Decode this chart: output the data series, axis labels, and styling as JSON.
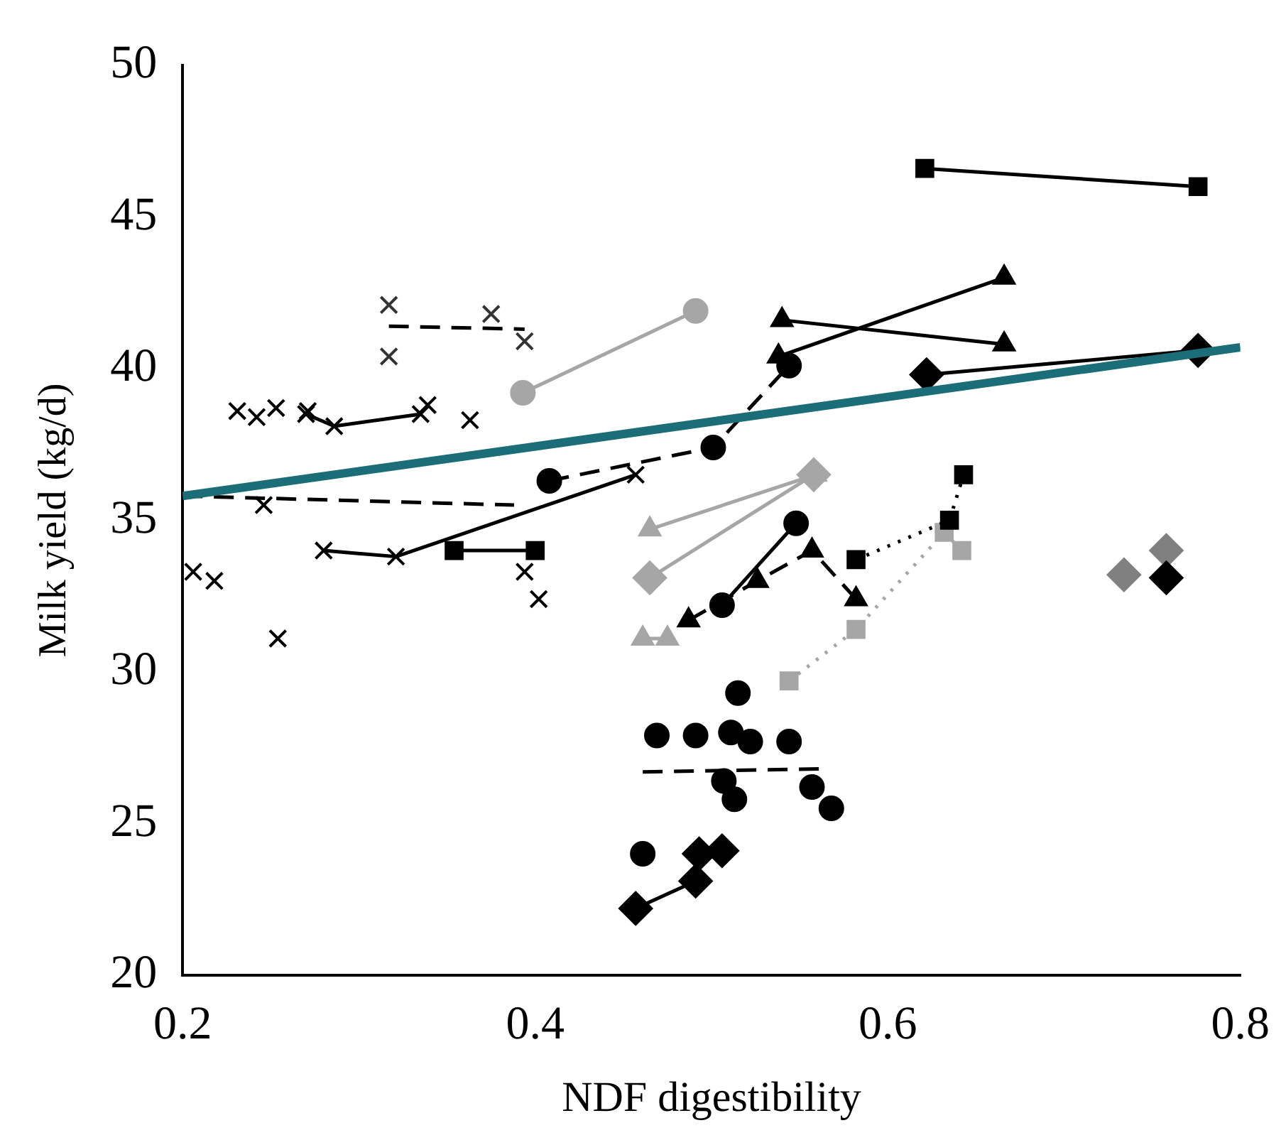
{
  "chart_data": {
    "type": "scatter",
    "xlabel": "NDF digestibility",
    "ylabel": "Milk yield (kg/d)",
    "xlim": [
      0.2,
      0.8
    ],
    "xticks": [
      0.2,
      0.4,
      0.6,
      0.8
    ],
    "ylim": [
      20,
      50
    ],
    "yticks": [
      20,
      25,
      30,
      35,
      40,
      45,
      50
    ],
    "grid": false,
    "legend": false,
    "series": [
      {
        "type": "scatter",
        "marker": "cross",
        "color": "#000000",
        "x": [
          0.231,
          0.242,
          0.253,
          0.271,
          0.339,
          0.363,
          0.246,
          0.206,
          0.218,
          0.254,
          0.394,
          0.402
        ],
        "values": [
          38.6,
          38.4,
          38.7,
          38.6,
          38.8,
          38.3,
          35.5,
          33.3,
          33.0,
          31.1,
          33.3,
          32.4
        ]
      },
      {
        "type": "line",
        "marker": "none",
        "line_style": "dashed",
        "color": "#000000",
        "x": [
          0.2,
          0.388
        ],
        "values": [
          35.8,
          35.5
        ]
      },
      {
        "type": "scatter",
        "marker": "cross",
        "color": "#333333",
        "x": [
          0.317,
          0.317,
          0.375,
          0.394
        ],
        "values": [
          42.1,
          40.4,
          41.8,
          40.9
        ]
      },
      {
        "type": "line",
        "marker": "none",
        "line_style": "dashed",
        "color": "#000000",
        "x": [
          0.317,
          0.394
        ],
        "values": [
          41.4,
          41.3
        ]
      },
      {
        "type": "line",
        "marker": "cross",
        "line_style": "solid",
        "color": "#000000",
        "x": [
          0.27,
          0.286,
          0.335
        ],
        "values": [
          38.5,
          38.1,
          38.5
        ]
      },
      {
        "type": "line",
        "marker": "cross",
        "line_style": "solid",
        "color": "#000000",
        "x": [
          0.28,
          0.321,
          0.457
        ],
        "values": [
          34.0,
          33.8,
          36.5
        ]
      },
      {
        "type": "line",
        "marker": "square",
        "line_style": "solid",
        "color": "#000000",
        "x": [
          0.354,
          0.4
        ],
        "values": [
          34.0,
          34.0
        ]
      },
      {
        "type": "line",
        "marker": "circle",
        "line_style": "solid",
        "color": "#a6a6a6",
        "x": [
          0.393,
          0.491
        ],
        "values": [
          39.2,
          41.9
        ]
      },
      {
        "type": "line",
        "marker": "circle",
        "line_style": "dashed",
        "color": "#000000",
        "x": [
          0.408,
          0.501,
          0.544
        ],
        "values": [
          36.3,
          37.4,
          40.1
        ]
      },
      {
        "type": "line",
        "marker": "circle",
        "line_style": "solid",
        "color": "#000000",
        "x": [
          0.506,
          0.548
        ],
        "values": [
          32.2,
          34.9
        ]
      },
      {
        "type": "line",
        "marker": "triangle",
        "line_style": "solid",
        "color": "#000000",
        "x": [
          0.54,
          0.666
        ],
        "values": [
          41.6,
          40.8
        ]
      },
      {
        "type": "line",
        "marker": "triangle",
        "line_style": "solid",
        "color": "#000000",
        "x": [
          0.538,
          0.666
        ],
        "values": [
          40.4,
          43.0
        ]
      },
      {
        "type": "line",
        "marker": "diamond",
        "line_style": "solid",
        "color": "#000000",
        "x": [
          0.622,
          0.776
        ],
        "values": [
          39.8,
          40.6
        ]
      },
      {
        "type": "line",
        "marker": "square",
        "line_style": "solid",
        "color": "#000000",
        "x": [
          0.621,
          0.776
        ],
        "values": [
          46.6,
          46.0
        ]
      },
      {
        "type": "line",
        "marker": "triangle",
        "line_style": "solid",
        "color": "#a6a6a6",
        "x": [
          0.465,
          0.559
        ],
        "values": [
          34.7,
          36.5
        ]
      },
      {
        "type": "line",
        "marker": "diamond",
        "line_style": "solid",
        "color": "#a6a6a6",
        "x": [
          0.465,
          0.558
        ],
        "values": [
          33.1,
          36.5
        ]
      },
      {
        "type": "line",
        "marker": "triangle",
        "line_style": "solid",
        "color": "#a6a6a6",
        "x": [
          0.461,
          0.475
        ],
        "values": [
          31.1,
          31.1
        ]
      },
      {
        "type": "line",
        "marker": "triangle",
        "line_style": "dashed",
        "color": "#000000",
        "x": [
          0.487,
          0.526,
          0.557,
          0.582
        ],
        "values": [
          31.7,
          33.0,
          34.0,
          32.4
        ]
      },
      {
        "type": "line",
        "marker": "square",
        "line_style": "dotted",
        "color": "#000000",
        "x": [
          0.582,
          0.635,
          0.643
        ],
        "values": [
          33.7,
          35.0,
          36.5
        ]
      },
      {
        "type": "line",
        "marker": "square",
        "line_style": "dotted",
        "color": "#a6a6a6",
        "x": [
          0.544,
          0.582,
          0.632,
          0.642
        ],
        "values": [
          29.7,
          31.4,
          34.6,
          34.0
        ]
      },
      {
        "type": "scatter",
        "marker": "circle",
        "color": "#000000",
        "x": [
          0.469,
          0.515,
          0.522,
          0.557,
          0.568,
          0.461
        ],
        "values": [
          27.9,
          29.3,
          27.7,
          26.2,
          25.5,
          24.0
        ]
      },
      {
        "type": "scatter",
        "marker": "circle",
        "color": "#000000",
        "x": [
          0.491,
          0.511,
          0.544,
          0.507,
          0.513
        ],
        "values": [
          27.9,
          28.0,
          27.7,
          26.4,
          25.8
        ]
      },
      {
        "type": "line",
        "marker": "none",
        "line_style": "dashed",
        "color": "#000000",
        "x": [
          0.461,
          0.564
        ],
        "values": [
          26.7,
          26.8
        ]
      },
      {
        "type": "line",
        "marker": "diamond",
        "line_style": "solid",
        "color": "#000000",
        "x": [
          0.457,
          0.491,
          0.493,
          0.506
        ],
        "values": [
          22.2,
          23.1,
          24.0,
          24.1
        ]
      },
      {
        "type": "scatter",
        "marker": "diamond",
        "color": "#808080",
        "x": [
          0.734
        ],
        "values": [
          33.2
        ]
      },
      {
        "type": "scatter",
        "marker": "diamond",
        "color": "#000000",
        "x": [
          0.758
        ],
        "values": [
          33.1
        ]
      },
      {
        "type": "scatter",
        "marker": "diamond",
        "color": "#808080",
        "x": [
          0.758
        ],
        "values": [
          34.0
        ]
      },
      {
        "type": "line",
        "marker": "none",
        "line_style": "solid",
        "color": "#1b6e78",
        "x": [
          0.2,
          0.8
        ],
        "values": [
          35.8,
          40.7
        ]
      }
    ]
  }
}
